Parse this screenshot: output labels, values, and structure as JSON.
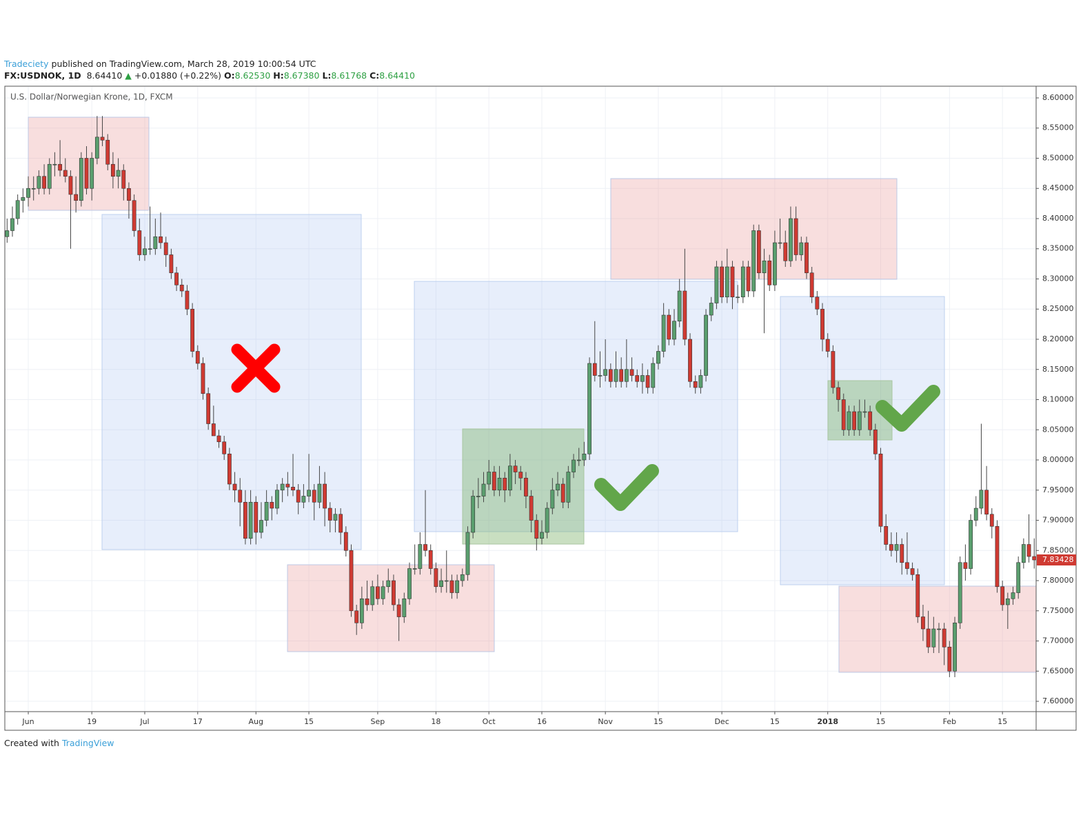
{
  "header": {
    "author": "Tradeciety",
    "published": "published on TradingView.com, March 28, 2019 10:00:54 UTC",
    "symbol": "FX:USDNOK, 1D",
    "last": "8.64410",
    "arrow": "▲",
    "change": "+0.01880 (+0.22%)",
    "o_label": "O:",
    "o": "8.62530",
    "h_label": "H:",
    "h": "8.67380",
    "l_label": "L:",
    "l": "8.61768",
    "c_label": "C:",
    "c": "8.64410"
  },
  "footer": {
    "text": "Created with",
    "brand": "TradingView"
  },
  "chart_data": {
    "type": "candlestick",
    "title": "U.S. Dollar/Norwegian Krone, 1D, FXCM",
    "up_color": "#5a9e6e",
    "down_color": "#cf3a32",
    "grid": true,
    "xlim": [
      -4.43,
      190.36
    ],
    "ylim": [
      7.5829,
      8.6194
    ],
    "xticks": [
      {
        "value": 0,
        "label": "Jun"
      },
      {
        "value": 12,
        "label": "19"
      },
      {
        "value": 22,
        "label": "Jul"
      },
      {
        "value": 32,
        "label": "17"
      },
      {
        "value": 43,
        "label": "Aug"
      },
      {
        "value": 53,
        "label": "15"
      },
      {
        "value": 66,
        "label": "Sep"
      },
      {
        "value": 77,
        "label": "18"
      },
      {
        "value": 87,
        "label": "Oct"
      },
      {
        "value": 97,
        "label": "16"
      },
      {
        "value": 109,
        "label": "Nov"
      },
      {
        "value": 119,
        "label": "15"
      },
      {
        "value": 131,
        "label": "Dec"
      },
      {
        "value": 141,
        "label": "15"
      },
      {
        "value": 151,
        "label": "2018"
      },
      {
        "value": 161,
        "label": "15"
      },
      {
        "value": 174,
        "label": "Feb"
      },
      {
        "value": 184,
        "label": "15"
      }
    ],
    "yticks": [
      {
        "value": 7.6,
        "label": "7.60000"
      },
      {
        "value": 7.65,
        "label": "7.65000"
      },
      {
        "value": 7.7,
        "label": "7.70000"
      },
      {
        "value": 7.75,
        "label": "7.75000"
      },
      {
        "value": 7.8,
        "label": "7.80000"
      },
      {
        "value": 7.85,
        "label": "7.85000"
      },
      {
        "value": 7.9,
        "label": "7.90000"
      },
      {
        "value": 7.95,
        "label": "7.95000"
      },
      {
        "value": 8.0,
        "label": "8.00000"
      },
      {
        "value": 8.05,
        "label": "8.05000"
      },
      {
        "value": 8.1,
        "label": "8.10000"
      },
      {
        "value": 8.15,
        "label": "8.15000"
      },
      {
        "value": 8.2,
        "label": "8.20000"
      },
      {
        "value": 8.25,
        "label": "8.25000"
      },
      {
        "value": 8.3,
        "label": "8.30000"
      },
      {
        "value": 8.35,
        "label": "8.35000"
      },
      {
        "value": 8.4,
        "label": "8.40000"
      },
      {
        "value": 8.45,
        "label": "8.45000"
      },
      {
        "value": 8.5,
        "label": "8.50000"
      },
      {
        "value": 8.55,
        "label": "8.55000"
      },
      {
        "value": 8.6,
        "label": "8.60000"
      }
    ],
    "x": [
      -4,
      -3,
      -2,
      -1,
      0,
      1,
      2,
      3,
      4,
      5,
      6,
      7,
      8,
      9,
      10,
      11,
      12,
      13,
      14,
      15,
      16,
      17,
      18,
      19,
      20,
      21,
      22,
      23,
      24,
      25,
      26,
      27,
      28,
      29,
      30,
      31,
      32,
      33,
      34,
      35,
      36,
      37,
      38,
      39,
      40,
      41,
      42,
      43,
      44,
      45,
      46,
      47,
      48,
      49,
      50,
      51,
      52,
      53,
      54,
      55,
      56,
      57,
      58,
      59,
      60,
      61,
      62,
      63,
      64,
      65,
      66,
      67,
      68,
      69,
      70,
      71,
      72,
      73,
      74,
      75,
      76,
      77,
      78,
      79,
      80,
      81,
      82,
      83,
      84,
      85,
      86,
      87,
      88,
      89,
      90,
      91,
      92,
      93,
      94,
      95,
      96,
      97,
      98,
      99,
      100,
      101,
      102,
      103,
      104,
      105,
      106,
      107,
      108,
      109,
      110,
      111,
      112,
      113,
      114,
      115,
      116,
      117,
      118,
      119,
      120,
      121,
      122,
      123,
      124,
      125,
      126,
      127,
      128,
      129,
      130,
      131,
      132,
      133,
      134,
      135,
      136,
      137,
      138,
      139,
      140,
      141,
      142,
      143,
      144,
      145,
      146,
      147,
      148,
      149,
      150,
      151,
      152,
      153,
      154,
      155,
      156,
      157,
      158,
      159,
      160,
      161,
      162,
      163,
      164,
      165,
      166,
      167,
      168,
      169,
      170,
      171,
      172,
      173,
      174,
      175,
      176,
      177,
      178,
      179,
      180,
      181,
      182,
      183,
      184,
      185,
      186,
      187,
      188,
      189,
      190
    ],
    "candles": [
      [
        8.37,
        8.4,
        8.36,
        8.38
      ],
      [
        8.38,
        8.42,
        8.37,
        8.4
      ],
      [
        8.4,
        8.44,
        8.39,
        8.43
      ],
      [
        8.43,
        8.45,
        8.41,
        8.435
      ],
      [
        8.435,
        8.47,
        8.42,
        8.45
      ],
      [
        8.45,
        8.47,
        8.43,
        8.45
      ],
      [
        8.45,
        8.48,
        8.44,
        8.47
      ],
      [
        8.47,
        8.49,
        8.44,
        8.45
      ],
      [
        8.45,
        8.5,
        8.44,
        8.49
      ],
      [
        8.49,
        8.51,
        8.47,
        8.49
      ],
      [
        8.49,
        8.53,
        8.47,
        8.48
      ],
      [
        8.48,
        8.5,
        8.46,
        8.47
      ],
      [
        8.47,
        8.48,
        8.35,
        8.44
      ],
      [
        8.44,
        8.47,
        8.41,
        8.43
      ],
      [
        8.43,
        8.51,
        8.42,
        8.5
      ],
      [
        8.5,
        8.52,
        8.44,
        8.45
      ],
      [
        8.45,
        8.51,
        8.43,
        8.5
      ],
      [
        8.5,
        8.57,
        8.49,
        8.535
      ],
      [
        8.535,
        8.57,
        8.52,
        8.53
      ],
      [
        8.53,
        8.54,
        8.48,
        8.49
      ],
      [
        8.49,
        8.51,
        8.45,
        8.47
      ],
      [
        8.47,
        8.5,
        8.45,
        8.48
      ],
      [
        8.48,
        8.49,
        8.43,
        8.45
      ],
      [
        8.45,
        8.46,
        8.4,
        8.43
      ],
      [
        8.43,
        8.44,
        8.37,
        8.38
      ],
      [
        8.38,
        8.4,
        8.33,
        8.34
      ],
      [
        8.34,
        8.37,
        8.33,
        8.35
      ],
      [
        8.35,
        8.42,
        8.34,
        8.35
      ],
      [
        8.35,
        8.4,
        8.34,
        8.37
      ],
      [
        8.37,
        8.41,
        8.35,
        8.36
      ],
      [
        8.36,
        8.37,
        8.32,
        8.34
      ],
      [
        8.34,
        8.35,
        8.3,
        8.31
      ],
      [
        8.31,
        8.32,
        8.28,
        8.29
      ],
      [
        8.29,
        8.3,
        8.27,
        8.28
      ],
      [
        8.28,
        8.29,
        8.24,
        8.25
      ],
      [
        8.25,
        8.26,
        8.17,
        8.18
      ],
      [
        8.18,
        8.19,
        8.15,
        8.16
      ],
      [
        8.16,
        8.17,
        8.1,
        8.11
      ],
      [
        8.11,
        8.12,
        8.05,
        8.06
      ],
      [
        8.06,
        8.09,
        8.04,
        8.04
      ],
      [
        8.04,
        8.05,
        8.02,
        8.03
      ],
      [
        8.03,
        8.04,
        8.0,
        8.01
      ],
      [
        8.01,
        8.02,
        7.95,
        7.96
      ],
      [
        7.96,
        7.98,
        7.93,
        7.95
      ],
      [
        7.95,
        7.97,
        7.89,
        7.93
      ],
      [
        7.93,
        7.95,
        7.86,
        7.87
      ],
      [
        7.87,
        7.95,
        7.86,
        7.93
      ],
      [
        7.93,
        7.94,
        7.86,
        7.88
      ],
      [
        7.88,
        7.93,
        7.87,
        7.9
      ],
      [
        7.9,
        7.95,
        7.89,
        7.93
      ],
      [
        7.93,
        7.94,
        7.9,
        7.92
      ],
      [
        7.92,
        7.96,
        7.91,
        7.95
      ],
      [
        7.95,
        7.97,
        7.93,
        7.96
      ],
      [
        7.96,
        7.98,
        7.94,
        7.955
      ],
      [
        7.955,
        8.01,
        7.94,
        7.95
      ],
      [
        7.95,
        7.96,
        7.91,
        7.93
      ],
      [
        7.93,
        7.96,
        7.92,
        7.94
      ],
      [
        7.94,
        8.01,
        7.93,
        7.95
      ],
      [
        7.95,
        7.96,
        7.9,
        7.93
      ],
      [
        7.93,
        7.99,
        7.92,
        7.96
      ],
      [
        7.96,
        7.98,
        7.89,
        7.92
      ],
      [
        7.92,
        7.93,
        7.88,
        7.9
      ],
      [
        7.9,
        7.92,
        7.88,
        7.91
      ],
      [
        7.91,
        7.92,
        7.86,
        7.88
      ],
      [
        7.88,
        7.89,
        7.84,
        7.85
      ],
      [
        7.85,
        7.86,
        7.74,
        7.75
      ],
      [
        7.75,
        7.76,
        7.71,
        7.73
      ],
      [
        7.73,
        7.79,
        7.72,
        7.77
      ],
      [
        7.77,
        7.8,
        7.75,
        7.76
      ],
      [
        7.76,
        7.8,
        7.75,
        7.79
      ],
      [
        7.79,
        7.81,
        7.76,
        7.77
      ],
      [
        7.77,
        7.8,
        7.76,
        7.79
      ],
      [
        7.79,
        7.82,
        7.78,
        7.8
      ],
      [
        7.8,
        7.81,
        7.75,
        7.76
      ],
      [
        7.76,
        7.77,
        7.7,
        7.74
      ],
      [
        7.74,
        7.78,
        7.73,
        7.77
      ],
      [
        7.77,
        7.83,
        7.76,
        7.82
      ],
      [
        7.82,
        7.86,
        7.81,
        7.82
      ],
      [
        7.82,
        7.88,
        7.81,
        7.86
      ],
      [
        7.86,
        7.95,
        7.84,
        7.85
      ],
      [
        7.85,
        7.86,
        7.81,
        7.82
      ],
      [
        7.82,
        7.83,
        7.78,
        7.79
      ],
      [
        7.79,
        7.82,
        7.78,
        7.8
      ],
      [
        7.8,
        7.85,
        7.78,
        7.8
      ],
      [
        7.8,
        7.81,
        7.77,
        7.78
      ],
      [
        7.78,
        7.81,
        7.77,
        7.8
      ],
      [
        7.8,
        7.82,
        7.79,
        7.81
      ],
      [
        7.81,
        7.89,
        7.8,
        7.88
      ],
      [
        7.88,
        7.95,
        7.87,
        7.94
      ],
      [
        7.94,
        7.97,
        7.92,
        7.94
      ],
      [
        7.94,
        7.98,
        7.93,
        7.96
      ],
      [
        7.96,
        8.0,
        7.95,
        7.98
      ],
      [
        7.98,
        7.99,
        7.94,
        7.95
      ],
      [
        7.95,
        7.99,
        7.94,
        7.97
      ],
      [
        7.97,
        7.98,
        7.93,
        7.95
      ],
      [
        7.95,
        8.01,
        7.94,
        7.99
      ],
      [
        7.99,
        8.0,
        7.96,
        7.98
      ],
      [
        7.98,
        7.99,
        7.95,
        7.97
      ],
      [
        7.97,
        7.98,
        7.92,
        7.94
      ],
      [
        7.94,
        7.95,
        7.88,
        7.9
      ],
      [
        7.9,
        7.91,
        7.85,
        7.87
      ],
      [
        7.87,
        7.9,
        7.86,
        7.88
      ],
      [
        7.88,
        7.93,
        7.87,
        7.92
      ],
      [
        7.92,
        7.97,
        7.91,
        7.95
      ],
      [
        7.95,
        7.98,
        7.94,
        7.96
      ],
      [
        7.96,
        7.97,
        7.92,
        7.93
      ],
      [
        7.93,
        7.99,
        7.92,
        7.98
      ],
      [
        7.98,
        8.01,
        7.97,
        8.0
      ],
      [
        8.0,
        8.02,
        7.99,
        8.0
      ],
      [
        8.0,
        8.03,
        7.99,
        8.01
      ],
      [
        8.01,
        8.17,
        8.0,
        8.16
      ],
      [
        8.16,
        8.23,
        8.13,
        8.14
      ],
      [
        8.14,
        8.18,
        8.12,
        8.14
      ],
      [
        8.14,
        8.2,
        8.13,
        8.15
      ],
      [
        8.15,
        8.16,
        8.12,
        8.13
      ],
      [
        8.13,
        8.18,
        8.12,
        8.15
      ],
      [
        8.15,
        8.17,
        8.12,
        8.13
      ],
      [
        8.13,
        8.2,
        8.12,
        8.15
      ],
      [
        8.15,
        8.17,
        8.13,
        8.14
      ],
      [
        8.14,
        8.15,
        8.12,
        8.13
      ],
      [
        8.13,
        8.16,
        8.11,
        8.14
      ],
      [
        8.14,
        8.15,
        8.11,
        8.12
      ],
      [
        8.12,
        8.17,
        8.11,
        8.16
      ],
      [
        8.16,
        8.19,
        8.15,
        8.18
      ],
      [
        8.18,
        8.26,
        8.17,
        8.24
      ],
      [
        8.24,
        8.25,
        8.19,
        8.2
      ],
      [
        8.2,
        8.25,
        8.19,
        8.23
      ],
      [
        8.23,
        8.3,
        8.22,
        8.28
      ],
      [
        8.28,
        8.35,
        8.19,
        8.2
      ],
      [
        8.2,
        8.21,
        8.12,
        8.13
      ],
      [
        8.13,
        8.14,
        8.11,
        8.12
      ],
      [
        8.12,
        8.15,
        8.11,
        8.14
      ],
      [
        8.14,
        8.25,
        8.13,
        8.24
      ],
      [
        8.24,
        8.27,
        8.23,
        8.26
      ],
      [
        8.26,
        8.33,
        8.25,
        8.32
      ],
      [
        8.32,
        8.33,
        8.26,
        8.27
      ],
      [
        8.27,
        8.35,
        8.26,
        8.32
      ],
      [
        8.32,
        8.33,
        8.25,
        8.27
      ],
      [
        8.27,
        8.29,
        8.26,
        8.27
      ],
      [
        8.27,
        8.33,
        8.26,
        8.32
      ],
      [
        8.32,
        8.33,
        8.27,
        8.28
      ],
      [
        8.28,
        8.39,
        8.27,
        8.38
      ],
      [
        8.38,
        8.39,
        8.3,
        8.31
      ],
      [
        8.31,
        8.35,
        8.21,
        8.33
      ],
      [
        8.33,
        8.34,
        8.28,
        8.29
      ],
      [
        8.29,
        8.38,
        8.28,
        8.36
      ],
      [
        8.36,
        8.4,
        8.35,
        8.36
      ],
      [
        8.36,
        8.38,
        8.32,
        8.33
      ],
      [
        8.33,
        8.42,
        8.32,
        8.4
      ],
      [
        8.4,
        8.42,
        8.33,
        8.34
      ],
      [
        8.34,
        8.37,
        8.33,
        8.36
      ],
      [
        8.36,
        8.37,
        8.3,
        8.31
      ],
      [
        8.31,
        8.32,
        8.26,
        8.27
      ],
      [
        8.27,
        8.28,
        8.24,
        8.25
      ],
      [
        8.25,
        8.26,
        8.18,
        8.2
      ],
      [
        8.2,
        8.21,
        8.17,
        8.18
      ],
      [
        8.18,
        8.19,
        8.11,
        8.12
      ],
      [
        8.12,
        8.13,
        8.08,
        8.1
      ],
      [
        8.1,
        8.11,
        8.04,
        8.05
      ],
      [
        8.05,
        8.09,
        8.04,
        8.08
      ],
      [
        8.08,
        8.09,
        8.04,
        8.05
      ],
      [
        8.05,
        8.1,
        8.04,
        8.08
      ],
      [
        8.08,
        8.1,
        8.07,
        8.08
      ],
      [
        8.08,
        8.09,
        8.04,
        8.05
      ],
      [
        8.05,
        8.06,
        8.0,
        8.01
      ],
      [
        8.01,
        8.02,
        7.88,
        7.89
      ],
      [
        7.89,
        7.91,
        7.85,
        7.86
      ],
      [
        7.86,
        7.88,
        7.84,
        7.85
      ],
      [
        7.85,
        7.88,
        7.83,
        7.86
      ],
      [
        7.86,
        7.87,
        7.81,
        7.83
      ],
      [
        7.83,
        7.88,
        7.81,
        7.82
      ],
      [
        7.82,
        7.83,
        7.8,
        7.81
      ],
      [
        7.81,
        7.82,
        7.73,
        7.74
      ],
      [
        7.74,
        7.76,
        7.7,
        7.72
      ],
      [
        7.72,
        7.75,
        7.68,
        7.69
      ],
      [
        7.69,
        7.74,
        7.68,
        7.72
      ],
      [
        7.72,
        7.73,
        7.68,
        7.72
      ],
      [
        7.72,
        7.73,
        7.66,
        7.69
      ],
      [
        7.69,
        7.7,
        7.64,
        7.65
      ],
      [
        7.65,
        7.74,
        7.64,
        7.73
      ],
      [
        7.73,
        7.84,
        7.72,
        7.83
      ],
      [
        7.83,
        7.86,
        7.8,
        7.82
      ],
      [
        7.82,
        7.91,
        7.81,
        7.9
      ],
      [
        7.9,
        7.94,
        7.89,
        7.92
      ],
      [
        7.92,
        8.06,
        7.91,
        7.95
      ],
      [
        7.95,
        7.99,
        7.9,
        7.91
      ],
      [
        7.91,
        7.92,
        7.87,
        7.89
      ],
      [
        7.89,
        7.9,
        7.78,
        7.79
      ],
      [
        7.79,
        7.8,
        7.75,
        7.76
      ],
      [
        7.76,
        7.78,
        7.72,
        7.77
      ],
      [
        7.77,
        7.79,
        7.76,
        7.78
      ],
      [
        7.78,
        7.84,
        7.77,
        7.83
      ],
      [
        7.83,
        7.87,
        7.82,
        7.86
      ],
      [
        7.86,
        7.91,
        7.83,
        7.84
      ],
      [
        7.84,
        7.87,
        7.82,
        7.83428
      ]
    ]
  }
}
